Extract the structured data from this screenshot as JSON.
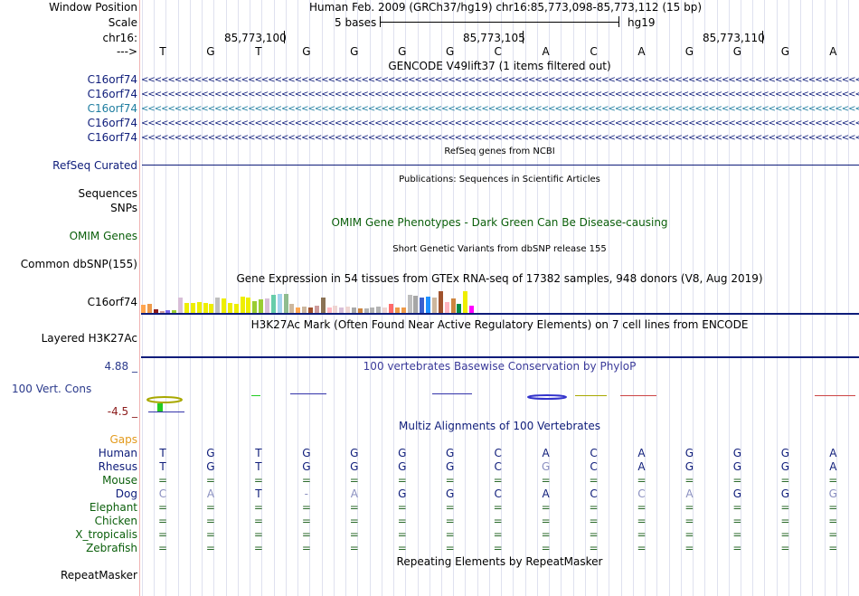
{
  "labels": {
    "window_position": "Window Position",
    "scale": "Scale",
    "chrom": "chr16:",
    "arrow": "--->",
    "refseq": "RefSeq Curated",
    "sequences": "Sequences",
    "snps": "SNPs",
    "omim": "OMIM Genes",
    "dbsnp": "Common dbSNP(155)",
    "gtex": "C16orf74",
    "h3k27ac": "Layered H3K27Ac",
    "cons_max": "4.88 _",
    "cons": "100 Vert. Cons",
    "cons_min": "-4.5 _",
    "gaps": "Gaps",
    "repeatmasker": "RepeatMasker"
  },
  "header": {
    "position": "Human Feb. 2009 (GRCh37/hg19)   chr16:85,773,098-85,773,112 (15 bp)",
    "scale_bases": "5 bases",
    "scale_db": "hg19",
    "coords": [
      "85,773,100",
      "85,773,105",
      "85,773,110"
    ]
  },
  "bases": [
    "T",
    "G",
    "T",
    "G",
    "G",
    "G",
    "G",
    "C",
    "A",
    "C",
    "A",
    "G",
    "G",
    "G",
    "A"
  ],
  "tracks": {
    "gencode_title": "GENCODE V49lift37 (1 items filtered out)",
    "gencode_items": [
      "C16orf74",
      "C16orf74",
      "C16orf74",
      "C16orf74",
      "C16orf74"
    ],
    "refseq_title": "RefSeq genes from NCBI",
    "publications_title": "Publications: Sequences in Scientific Articles",
    "omim_title": "OMIM Gene Phenotypes - Dark Green Can Be Disease-causing",
    "dbsnp_title": "Short Genetic Variants from dbSNP release 155",
    "gtex_title": "Gene Expression in 54 tissues from GTEx RNA-seq of 17382 samples, 948 donors (V8, Aug 2019)",
    "h3k27ac_title": "H3K27Ac Mark (Often Found Near Active Regulatory Elements) on 7 cell lines from ENCODE",
    "phylop_title": "100 vertebrates Basewise Conservation by PhyloP",
    "multiz_title": "Multiz Alignments of 100 Vertebrates",
    "repeat_title": "Repeating Elements by RepeatMasker"
  },
  "gtex_values": [
    0.45,
    0.5,
    0.18,
    0.12,
    0.15,
    0.13,
    0.85,
    0.55,
    0.55,
    0.6,
    0.55,
    0.5,
    0.85,
    0.8,
    0.55,
    0.5,
    0.9,
    0.85,
    0.65,
    0.75,
    0.8,
    1.0,
    1.05,
    1.05,
    0.5,
    0.3,
    0.35,
    0.3,
    0.4,
    0.85,
    0.3,
    0.4,
    0.3,
    0.35,
    0.3,
    0.25,
    0.25,
    0.3,
    0.35,
    0.3,
    0.5,
    0.3,
    0.3,
    1.0,
    0.95,
    0.85,
    0.9,
    0.85,
    1.2,
    0.6,
    0.8,
    0.5,
    1.2,
    0.4
  ],
  "gtex_colors": [
    "#ffa54f",
    "#ee9a49",
    "#8b1a1a",
    "#cd9b9b",
    "#7a67ee",
    "#9acd32",
    "#d8bfd8",
    "#eeee00",
    "#eeee00",
    "#eeee00",
    "#eeee00",
    "#eeee00",
    "#bebebe",
    "#eeee00",
    "#eeee00",
    "#eeee00",
    "#eeee00",
    "#eeee00",
    "#9acd32",
    "#9acd32",
    "#d8bfd8",
    "#66cdaa",
    "#a4d3ee",
    "#8fbc8f",
    "#cdb79e",
    "#ffa54f",
    "#cdb79e",
    "#a0522d",
    "#cd9b9b",
    "#8b7355",
    "#ffb6c1",
    "#eed5d2",
    "#d8bfd8",
    "#eed5d2",
    "#a9a9a9",
    "#cd853f",
    "#b3b3b3",
    "#b3b3b3",
    "#b3b3b3",
    "#eed5d2",
    "#ff6a6a",
    "#ee9a49",
    "#ee9a49",
    "#bebebe",
    "#a6a6a6",
    "#3a5fcd",
    "#1e90ff",
    "#cdb79e",
    "#a0522d",
    "#ffb6c1",
    "#cd853f",
    "#008b45",
    "#eeee00",
    "#ff00ff"
  ],
  "multiz": {
    "species": [
      {
        "name": "Human",
        "color": "#0e1c7a",
        "row": [
          "T",
          "G",
          "T",
          "G",
          "G",
          "G",
          "G",
          "C",
          "A",
          "C",
          "A",
          "G",
          "G",
          "G",
          "A"
        ]
      },
      {
        "name": "Rhesus",
        "color": "#0e1c7a",
        "row": [
          "T",
          "G",
          "T",
          "G",
          "G",
          "G",
          "G",
          "C",
          "G",
          "C",
          "A",
          "G",
          "G",
          "G",
          "A"
        ]
      },
      {
        "name": "Mouse",
        "color": "#0b5f0b",
        "row": [
          "=",
          "=",
          "=",
          "=",
          "=",
          "=",
          "=",
          "=",
          "=",
          "=",
          "=",
          "=",
          "=",
          "=",
          "="
        ]
      },
      {
        "name": "Dog",
        "color": "#0e1c7a",
        "row": [
          "C",
          "A",
          "T",
          "-",
          "A",
          "G",
          "G",
          "C",
          "A",
          "C",
          "C",
          "A",
          "G",
          "G",
          "G"
        ]
      },
      {
        "name": "Elephant",
        "color": "#0b5f0b",
        "row": [
          "=",
          "=",
          "=",
          "=",
          "=",
          "=",
          "=",
          "=",
          "=",
          "=",
          "=",
          "=",
          "=",
          "=",
          "="
        ]
      },
      {
        "name": "Chicken",
        "color": "#0b5f0b",
        "row": [
          "=",
          "=",
          "=",
          "=",
          "=",
          "=",
          "=",
          "=",
          "=",
          "=",
          "=",
          "=",
          "=",
          "=",
          "="
        ]
      },
      {
        "name": "X_tropicalis",
        "color": "#0b5f0b",
        "row": [
          "=",
          "=",
          "=",
          "=",
          "=",
          "=",
          "=",
          "=",
          "=",
          "=",
          "=",
          "=",
          "=",
          "=",
          "="
        ]
      },
      {
        "name": "Zebrafish",
        "color": "#0b5f0b",
        "row": [
          "=",
          "=",
          "=",
          "=",
          "=",
          "=",
          "=",
          "=",
          "=",
          "=",
          "=",
          "=",
          "=",
          "=",
          "="
        ]
      }
    ],
    "dim_cells": {
      "Rhesus": [
        8
      ],
      "Dog": [
        0,
        1,
        3,
        4,
        10,
        11,
        14
      ]
    }
  },
  "colors": {
    "label_blue": "#0e1c7a",
    "gene_blue": "#0e1c7a",
    "gene_cyan": "#1e7da0",
    "omim_green": "#0b5f0b",
    "gaps_orange": "#e39a1c",
    "cons_max": "#2b3a8c",
    "cons_min": "#8b1a1a"
  }
}
